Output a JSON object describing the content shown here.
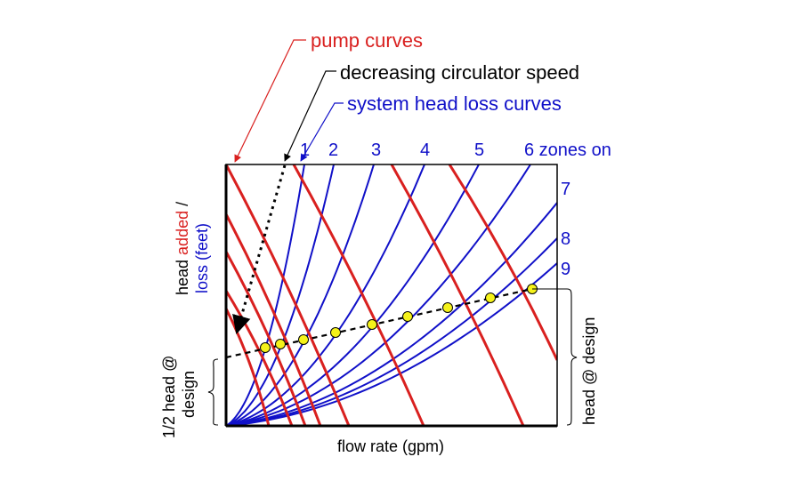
{
  "annotations": {
    "pump_curves": "pump curves",
    "decreasing_speed": "decreasing circulator speed",
    "system_curves": "system head loss curves"
  },
  "y_axis": {
    "part1": "head ",
    "part2": "added",
    "part3": " /",
    "line2": "loss (feet)"
  },
  "x_axis": {
    "label": "flow rate (gpm)"
  },
  "half_head": {
    "line1": "1/2 head @",
    "line2": "design"
  },
  "head_design": "head @ design",
  "zones": {
    "top": [
      "1",
      "2",
      "3",
      "4",
      "5",
      "6"
    ],
    "top_suffix": " zones on",
    "right": [
      "7",
      "8",
      "9"
    ]
  },
  "colors": {
    "pump": "#d9201f",
    "system": "#1010c8",
    "point_fill": "#f5f21a",
    "text": "#000000"
  },
  "chart_data": {
    "type": "line",
    "system_curve_count": 9,
    "pump_curve_count": 8,
    "operating_point_count": 9
  }
}
